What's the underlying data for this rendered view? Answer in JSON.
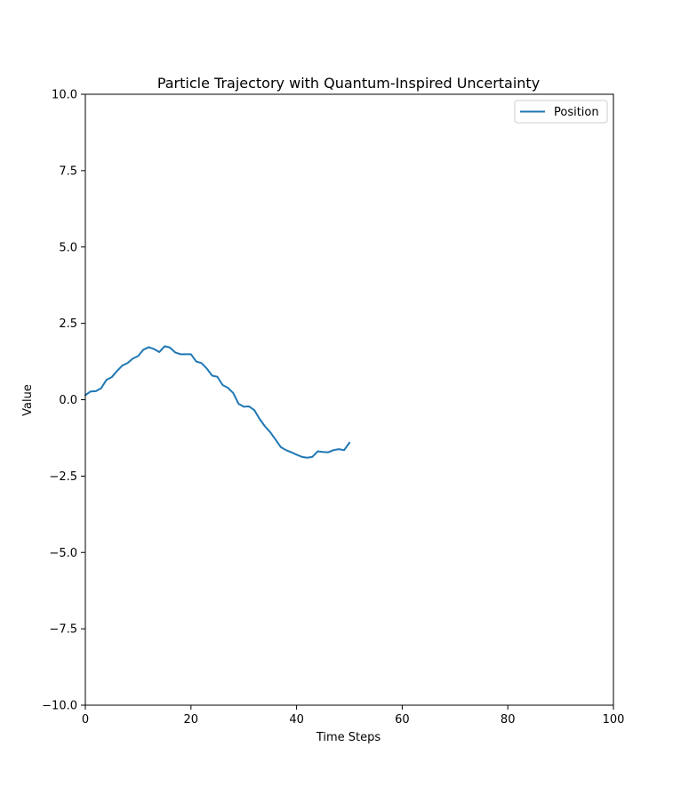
{
  "chart_data": {
    "type": "line",
    "title": "Particle Trajectory with Quantum-Inspired Uncertainty",
    "xlabel": "Time Steps",
    "ylabel": "Value",
    "xlim": [
      0,
      100
    ],
    "ylim": [
      -10,
      10
    ],
    "xticks": [
      0,
      20,
      40,
      60,
      80,
      100
    ],
    "xtick_labels": [
      "0",
      "20",
      "40",
      "60",
      "80",
      "100"
    ],
    "yticks": [
      -10,
      -7.5,
      -5,
      -2.5,
      0,
      2.5,
      5,
      7.5,
      10
    ],
    "ytick_labels": [
      "−10.0",
      "−7.5",
      "−5.0",
      "−2.5",
      "0.0",
      "2.5",
      "5.0",
      "7.5",
      "10.0"
    ],
    "grid": false,
    "legend_position": "top-right",
    "series": [
      {
        "name": "Position",
        "color": "#1f77b4",
        "x": [
          0,
          1,
          2,
          3,
          4,
          5,
          6,
          7,
          8,
          9,
          10,
          11,
          12,
          13,
          14,
          15,
          16,
          17,
          18,
          19,
          20,
          21,
          22,
          23,
          24,
          25,
          26,
          27,
          28,
          29,
          30,
          31,
          32,
          33,
          34,
          35,
          36,
          37,
          38,
          39,
          40,
          41,
          42,
          43,
          44,
          45,
          46,
          47,
          48,
          49,
          50
        ],
        "values": [
          0.15,
          0.27,
          0.28,
          0.38,
          0.65,
          0.74,
          0.94,
          1.12,
          1.2,
          1.35,
          1.43,
          1.64,
          1.72,
          1.66,
          1.56,
          1.75,
          1.71,
          1.55,
          1.49,
          1.49,
          1.49,
          1.25,
          1.2,
          1.02,
          0.79,
          0.75,
          0.48,
          0.39,
          0.22,
          -0.13,
          -0.23,
          -0.22,
          -0.34,
          -0.63,
          -0.87,
          -1.06,
          -1.3,
          -1.55,
          -1.65,
          -1.72,
          -1.8,
          -1.87,
          -1.9,
          -1.87,
          -1.69,
          -1.71,
          -1.72,
          -1.65,
          -1.62,
          -1.65,
          -1.41
        ]
      }
    ]
  }
}
